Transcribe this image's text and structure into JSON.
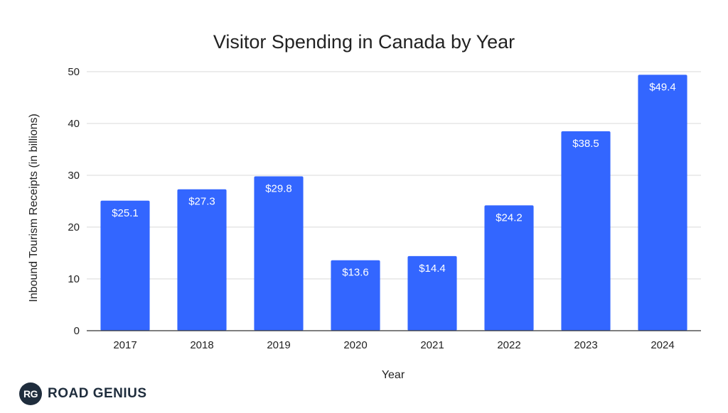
{
  "chart_data": {
    "type": "bar",
    "title": "Visitor Spending in Canada by Year",
    "xlabel": "Year",
    "ylabel": "Inbound Tourism Receipts (in billions)",
    "categories": [
      "2017",
      "2018",
      "2019",
      "2020",
      "2021",
      "2022",
      "2023",
      "2024"
    ],
    "values": [
      25.1,
      27.3,
      29.8,
      13.6,
      14.4,
      24.2,
      38.5,
      49.4
    ],
    "data_labels": [
      "$25.1",
      "$27.3",
      "$29.8",
      "$13.6",
      "$14.4",
      "$24.2",
      "$38.5",
      "$49.4"
    ],
    "ylim": [
      0,
      50
    ],
    "yticks": [
      0,
      10,
      20,
      30,
      40,
      50
    ],
    "grid": true,
    "bar_color": "#3366ff",
    "grid_color": "#d9d9d9",
    "text_color": "#222222"
  },
  "logo": {
    "badge_text": "RG",
    "brand_text": "ROAD GENIUS",
    "color": "#1f2d3d"
  }
}
